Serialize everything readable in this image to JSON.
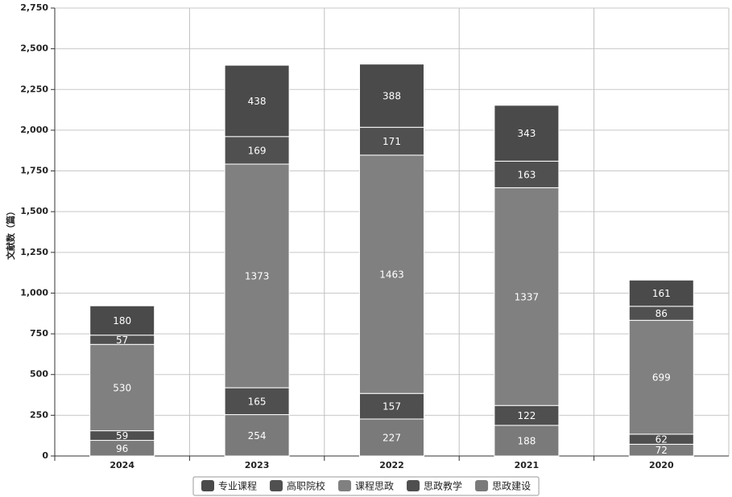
{
  "chart_data": {
    "type": "stacked-bar",
    "y_label": "文献数（篇）",
    "categories": [
      "2024",
      "2023",
      "2022",
      "2021",
      "2020"
    ],
    "series": [
      {
        "name": "专业课程",
        "color": "#4a4a4a",
        "values": [
          180,
          438,
          388,
          343,
          161
        ]
      },
      {
        "name": "高职院校",
        "color": "#505050",
        "values": [
          57,
          169,
          171,
          163,
          86
        ]
      },
      {
        "name": "课程思政",
        "color": "#808080",
        "values": [
          530,
          1373,
          1463,
          1337,
          699
        ]
      },
      {
        "name": "思政教学",
        "color": "#4f4f4f",
        "values": [
          59,
          165,
          157,
          122,
          62
        ]
      },
      {
        "name": "思政建设",
        "color": "#7a7a7a",
        "values": [
          96,
          254,
          227,
          188,
          72
        ]
      }
    ],
    "ylim": [
      0,
      2750
    ],
    "yticks": [
      0,
      250,
      500,
      750,
      {
        "value": 1000,
        "label": "1,000"
      },
      {
        "value": 1250,
        "label": "1,250"
      },
      {
        "value": 1500,
        "label": "1,500"
      },
      {
        "value": 1750,
        "label": "1,750"
      },
      {
        "value": 2000,
        "label": "2,000"
      },
      {
        "value": 2250,
        "label": "2,250"
      },
      {
        "value": 2500,
        "label": "2,500"
      },
      {
        "value": 2750,
        "label": "2,750"
      }
    ],
    "grid": true,
    "legend": "bottom"
  }
}
